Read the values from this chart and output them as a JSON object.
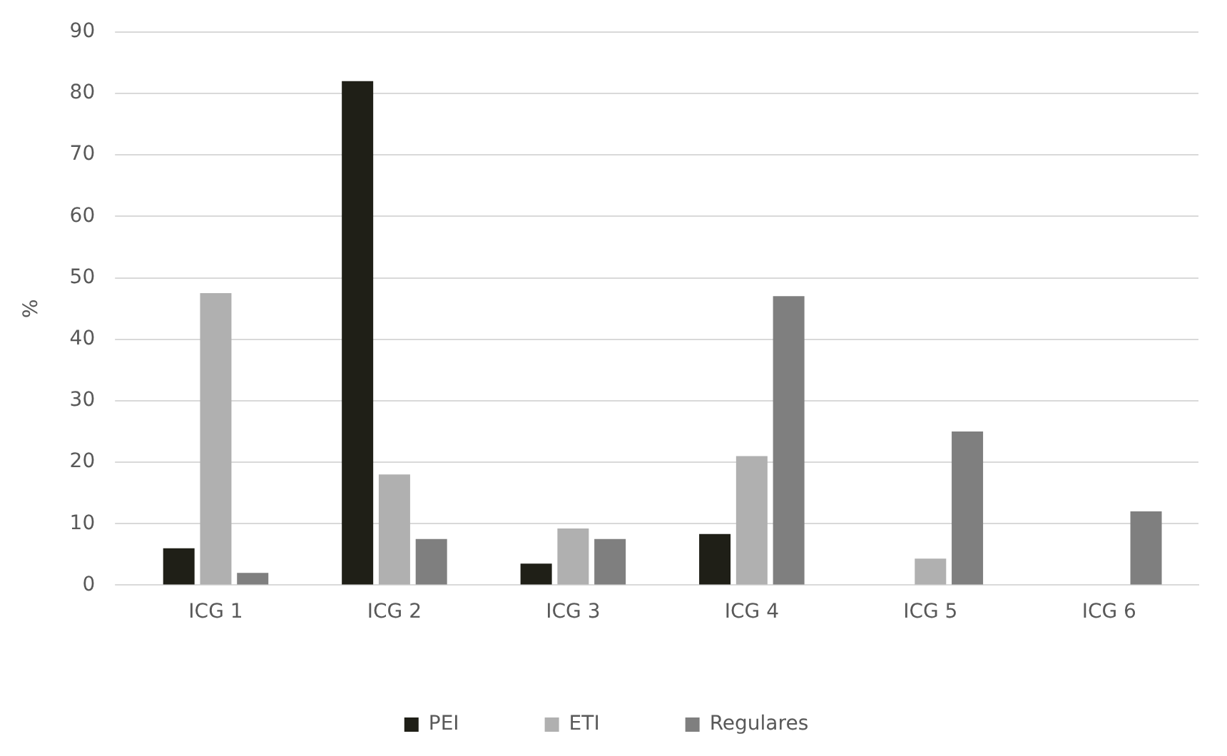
{
  "chart_data": {
    "type": "bar",
    "ylabel": "%",
    "categories": [
      "ICG 1",
      "ICG 2",
      "ICG 3",
      "ICG 4",
      "ICG 5",
      "ICG 6"
    ],
    "series": [
      {
        "name": "PEI",
        "color": "#1f1f17",
        "values": [
          6,
          82,
          3.5,
          8.3,
          0,
          0
        ]
      },
      {
        "name": "ETI",
        "color": "#b0b0b0",
        "values": [
          47.5,
          18,
          9.2,
          21,
          4.3,
          0
        ]
      },
      {
        "name": "Regulares",
        "color": "#7f7f7f",
        "values": [
          2,
          7.5,
          7.5,
          47,
          25,
          12
        ]
      }
    ],
    "ylim": [
      0,
      90
    ],
    "yticks": [
      0,
      10,
      20,
      30,
      40,
      50,
      60,
      70,
      80,
      90
    ],
    "grid": "y",
    "legend": "bottom"
  }
}
